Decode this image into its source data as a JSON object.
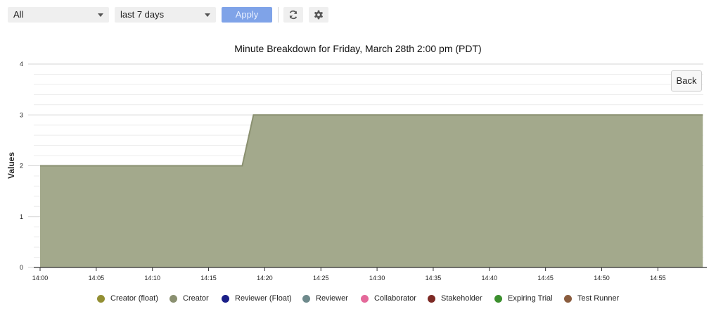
{
  "filters": {
    "scope_value": "All",
    "range_value": "last 7 days",
    "apply_label": "Apply",
    "refresh_icon": "refresh-icon",
    "settings_icon": "gear-icon"
  },
  "back_label": "Back",
  "chart_data": {
    "type": "area",
    "title": "Minute Breakdown for Friday, March 28th 2:00 pm (PDT)",
    "xlabel": "",
    "ylabel": "Values",
    "x_tick_labels": [
      "14:00",
      "14:05",
      "14:10",
      "14:15",
      "14:20",
      "14:25",
      "14:30",
      "14:35",
      "14:40",
      "14:45",
      "14:50",
      "14:55"
    ],
    "y_tick_labels": [
      "0",
      "1",
      "2",
      "3",
      "4"
    ],
    "xlim": [
      "14:00",
      "14:59"
    ],
    "ylim": [
      0,
      4
    ],
    "grid": true,
    "legend_position": "bottom",
    "series": [
      {
        "name": "Creator",
        "color": "#8a9070",
        "fill": "#a3a98c",
        "points": [
          [
            "14:00",
            2
          ],
          [
            "14:18",
            2
          ],
          [
            "14:19",
            3
          ],
          [
            "14:59",
            3
          ]
        ]
      }
    ],
    "legend": [
      {
        "name": "Creator (float)",
        "color": "#938f33"
      },
      {
        "name": "Creator",
        "color": "#8a9070"
      },
      {
        "name": "Reviewer (Float)",
        "color": "#1a1f88"
      },
      {
        "name": "Reviewer",
        "color": "#6e8a8c"
      },
      {
        "name": "Collaborator",
        "color": "#e4699a"
      },
      {
        "name": "Stakeholder",
        "color": "#7d2a25"
      },
      {
        "name": "Expiring Trial",
        "color": "#3c8f2e"
      },
      {
        "name": "Test Runner",
        "color": "#8a5c3e"
      }
    ]
  }
}
